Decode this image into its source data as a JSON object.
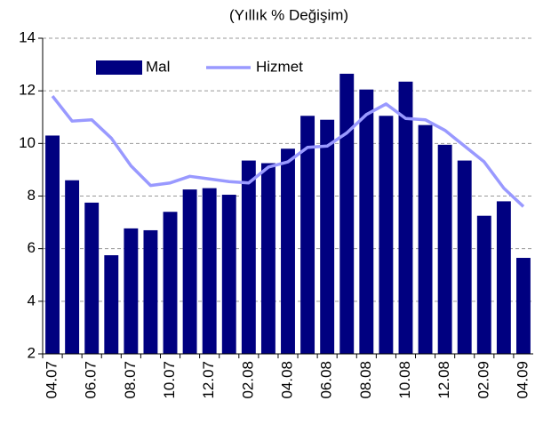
{
  "chart_data": {
    "type": "bar-line",
    "title": "(Yıllık % Değişim)",
    "categories": [
      "04.07",
      null,
      "06.07",
      null,
      "08.07",
      null,
      "10.07",
      null,
      "12.07",
      null,
      "02.08",
      null,
      "04.08",
      null,
      "06.08",
      null,
      "08.08",
      null,
      "10.08",
      null,
      "12.08",
      null,
      "02.09",
      null,
      "04.09"
    ],
    "series": [
      {
        "name": "Mal",
        "type": "bar",
        "color": "#000080",
        "values": [
          10.3,
          8.6,
          7.75,
          5.75,
          6.77,
          6.7,
          7.4,
          8.25,
          8.3,
          8.05,
          9.35,
          9.25,
          9.8,
          11.05,
          10.9,
          12.65,
          12.05,
          11.05,
          12.35,
          10.7,
          9.95,
          9.35,
          7.25,
          7.8,
          5.65
        ]
      },
      {
        "name": "Hizmet",
        "type": "line",
        "color": "#9999ff",
        "values": [
          11.8,
          10.85,
          10.9,
          10.2,
          9.15,
          8.4,
          8.5,
          8.75,
          8.65,
          8.55,
          8.5,
          9.1,
          9.3,
          9.85,
          9.9,
          10.4,
          11.1,
          11.5,
          10.95,
          10.9,
          10.5,
          9.9,
          9.3,
          8.3,
          7.6
        ]
      }
    ],
    "ylim": [
      2,
      14
    ],
    "yticks": [
      2,
      4,
      6,
      8,
      10,
      12,
      14
    ],
    "grid": true,
    "legend": "top-left"
  }
}
